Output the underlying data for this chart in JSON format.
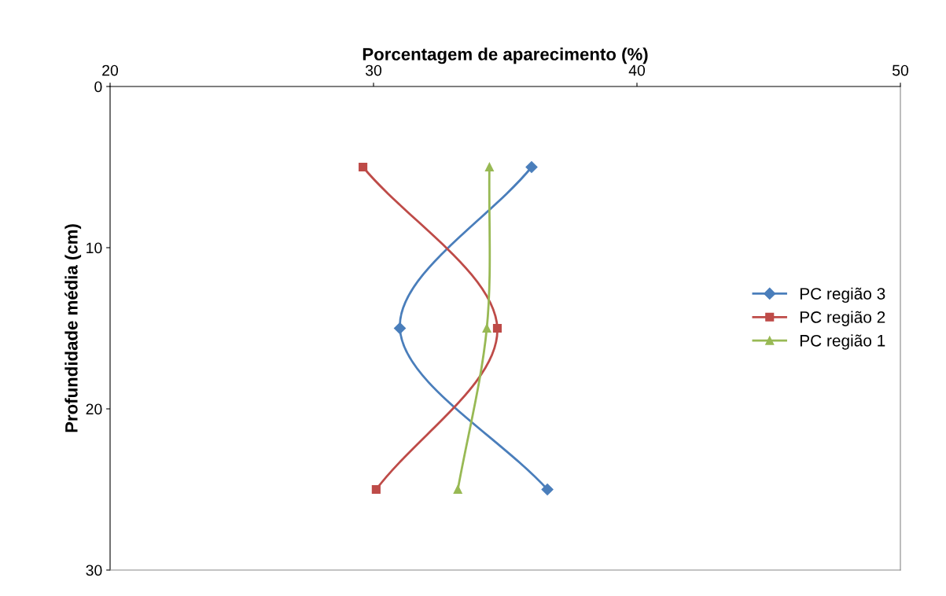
{
  "chart_data": {
    "type": "line",
    "xlabel": "Porcentagem de aparecimento (%)",
    "ylabel": "Profundidade média (cm)",
    "xlim": [
      20,
      50
    ],
    "xticks": [
      20,
      30,
      40,
      50
    ],
    "ylim": [
      30,
      0
    ],
    "yticks": [
      0,
      10,
      20,
      30
    ],
    "grid": false,
    "legend": "right",
    "line_style": "solid",
    "series": [
      {
        "name": "PC região 3",
        "color": "#4a7ebb",
        "marker": "diamond",
        "x": [
          36.0,
          31.0,
          36.6
        ],
        "values": [
          5,
          15,
          25
        ]
      },
      {
        "name": "PC região 2",
        "color": "#be4b48",
        "marker": "square",
        "x": [
          29.6,
          34.7,
          30.1
        ],
        "values": [
          5,
          15,
          25
        ]
      },
      {
        "name": "PC região 1",
        "color": "#98b954",
        "marker": "triangle",
        "x": [
          34.4,
          34.3,
          33.2
        ],
        "values": [
          5,
          15,
          25
        ]
      }
    ]
  }
}
